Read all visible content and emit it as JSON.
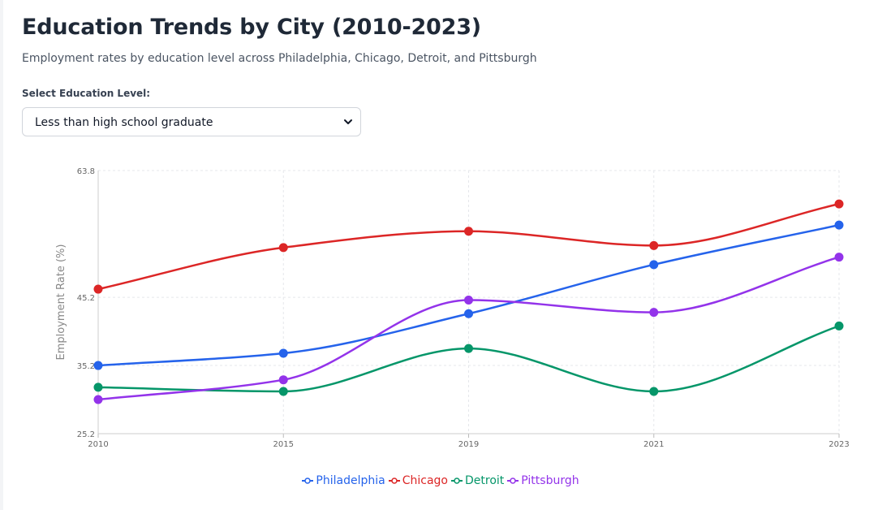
{
  "header": {
    "title": "Education Trends by City (2010-2023)",
    "subtitle": "Employment rates by education level across Philadelphia, Chicago, Detroit, and Pittsburgh"
  },
  "filter": {
    "label": "Select Education Level:",
    "selected": "Less than high school graduate"
  },
  "chart_data": {
    "type": "line",
    "x": [
      "2010",
      "2015",
      "2019",
      "2021",
      "2023"
    ],
    "ylabel": "Employment Rate (%)",
    "xlabel": "",
    "ylim": [
      25.2,
      63.8
    ],
    "yticks": [
      "63.8",
      "45.2",
      "35.2",
      "25.2"
    ],
    "grid": true,
    "legend_position": "bottom",
    "series": [
      {
        "name": "Philadelphia",
        "color": "#2563eb",
        "values": [
          35.2,
          37.0,
          42.8,
          50.0,
          55.8
        ]
      },
      {
        "name": "Chicago",
        "color": "#dc2626",
        "values": [
          46.4,
          52.5,
          54.9,
          52.8,
          58.9
        ]
      },
      {
        "name": "Detroit",
        "color": "#059669",
        "values": [
          32.0,
          31.4,
          37.7,
          31.4,
          41.0
        ]
      },
      {
        "name": "Pittsburgh",
        "color": "#9333ea",
        "values": [
          30.2,
          33.1,
          44.8,
          43.0,
          51.1
        ]
      }
    ]
  }
}
